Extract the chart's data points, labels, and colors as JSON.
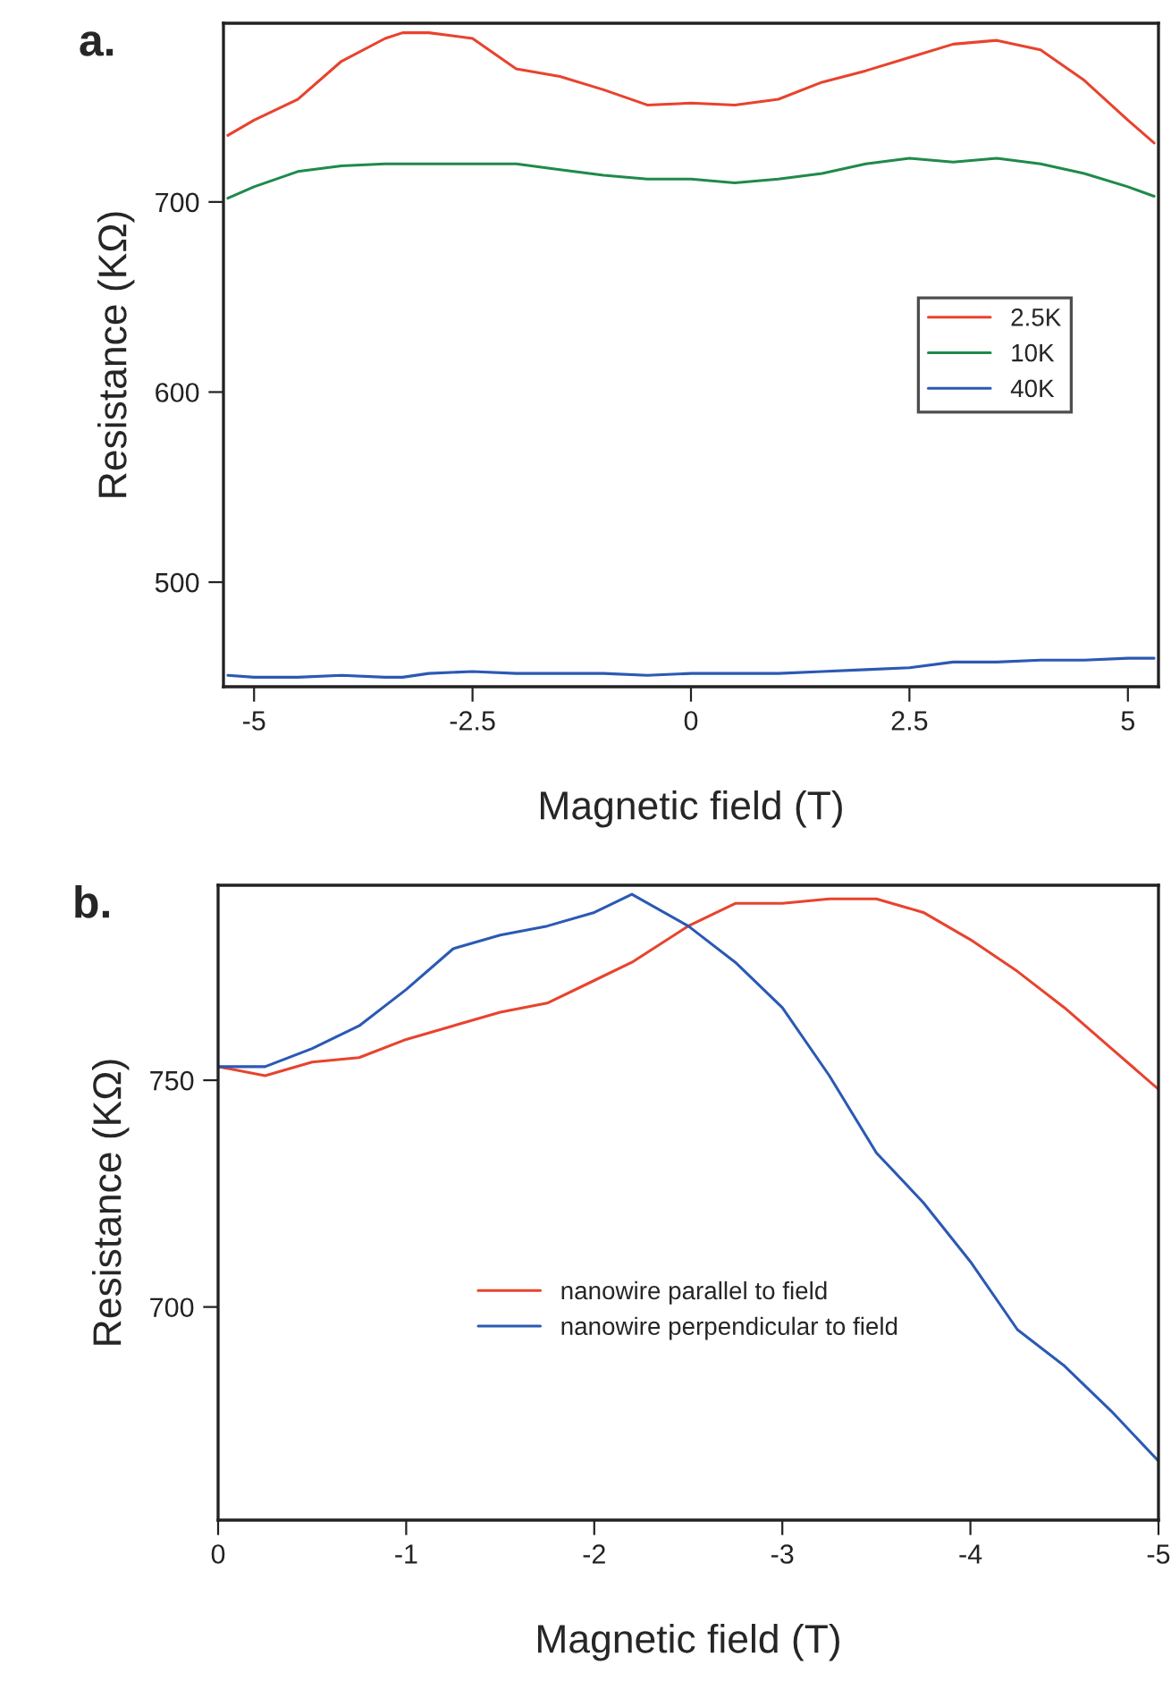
{
  "chart_data": [
    {
      "type": "line",
      "xlabel": "Magnetic field (T)",
      "ylabel": "Resistance (KΩ)",
      "annotations": [
        "a."
      ],
      "xlim": [
        -5.35,
        5.35
      ],
      "ylim": [
        445,
        794
      ],
      "xticks": [
        -5,
        -2.5,
        0,
        2.5,
        5
      ],
      "yticks": [
        500,
        600,
        700
      ],
      "grid": false,
      "legend": "right",
      "marker": "none",
      "line_style": "solid",
      "x": [
        -5.3,
        -5.0,
        -4.5,
        -4.0,
        -3.5,
        -3.3,
        -3.0,
        -2.5,
        -2.0,
        -1.5,
        -1.0,
        -0.5,
        0.0,
        0.5,
        1.0,
        1.5,
        2.0,
        2.5,
        3.0,
        3.5,
        4.0,
        4.5,
        5.0,
        5.3
      ],
      "series": [
        {
          "name": "2.5K",
          "color": "#e8432e",
          "values": [
            735,
            743,
            754,
            774,
            786,
            789,
            789,
            786,
            770,
            766,
            759,
            751,
            752,
            751,
            754,
            763,
            769,
            776,
            783,
            785,
            780,
            764,
            743,
            731
          ]
        },
        {
          "name": "10K",
          "color": "#1f8a4c",
          "values": [
            702,
            708,
            716,
            719,
            720,
            720,
            720,
            720,
            720,
            717,
            714,
            712,
            712,
            710,
            712,
            715,
            720,
            723,
            721,
            723,
            720,
            715,
            708,
            703
          ]
        },
        {
          "name": "40K",
          "color": "#2b59b4",
          "values": [
            451,
            450,
            450,
            451,
            450,
            450,
            452,
            453,
            452,
            452,
            452,
            451,
            452,
            452,
            452,
            453,
            454,
            455,
            458,
            458,
            459,
            459,
            460,
            460
          ]
        }
      ]
    },
    {
      "type": "line",
      "xlabel": "Magnetic field (T)",
      "ylabel": "Resistance (KΩ)",
      "annotations": [
        "b."
      ],
      "xlim": [
        0,
        -5
      ],
      "ylim": [
        653,
        793
      ],
      "xticks": [
        0,
        -1,
        -2,
        -3,
        -4,
        -5
      ],
      "yticks": [
        700,
        750
      ],
      "grid": false,
      "legend": "center",
      "marker": "none",
      "line_style": "solid",
      "x": [
        0,
        -0.25,
        -0.5,
        -0.75,
        -1.0,
        -1.25,
        -1.5,
        -1.75,
        -2.0,
        -2.2,
        -2.5,
        -2.75,
        -3.0,
        -3.25,
        -3.5,
        -3.75,
        -4.0,
        -4.25,
        -4.5,
        -4.75,
        -5.0
      ],
      "series": [
        {
          "name": "nanowire parallel to field",
          "color": "#e8432e",
          "values": [
            753,
            751,
            754,
            755,
            759,
            762,
            765,
            767,
            772,
            776,
            784,
            789,
            789,
            790,
            790,
            787,
            781,
            774,
            766,
            757,
            748
          ]
        },
        {
          "name": "nanowire perpendicular to field",
          "color": "#2b59b4",
          "values": [
            753,
            753,
            757,
            762,
            770,
            779,
            782,
            784,
            787,
            791,
            784,
            776,
            766,
            751,
            734,
            723,
            710,
            695,
            687,
            677,
            666
          ]
        }
      ]
    }
  ]
}
